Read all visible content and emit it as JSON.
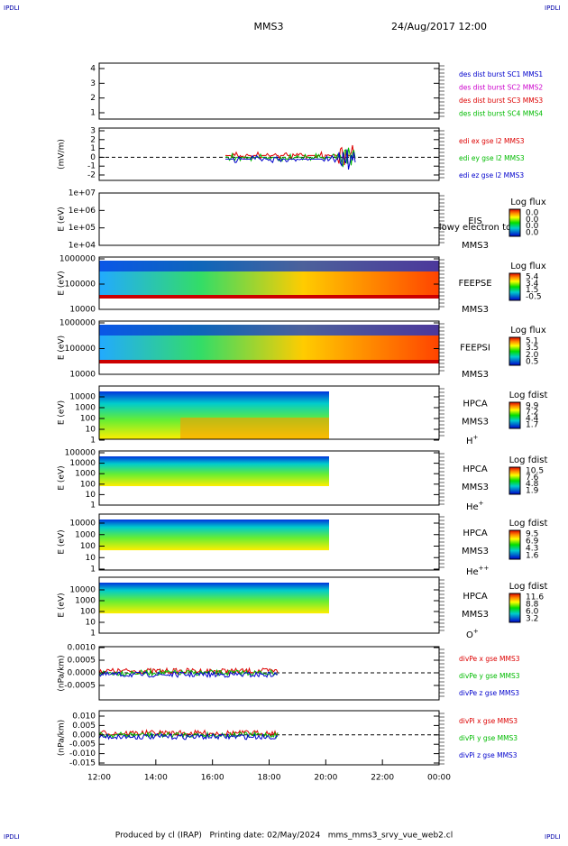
{
  "header": {
    "left_logo": "IPDLI",
    "right_logo": "IPDLI",
    "mission": "MMS3",
    "date": "24/Aug/2017 12:00"
  },
  "panels": [
    {
      "kind": "line",
      "yticks": [
        "4",
        "3",
        "2",
        "1"
      ],
      "legend": [
        {
          "text": "des dist burst SC1 MMS1",
          "color": "#0000cc"
        },
        {
          "text": "des dist burst SC2 MMS2",
          "color": "#cc00cc"
        },
        {
          "text": "des dist burst SC3 MMS3",
          "color": "#dd0000"
        },
        {
          "text": "des dist burst SC4 MMS4",
          "color": "#00bb00"
        }
      ]
    },
    {
      "kind": "line",
      "ylabel": "(mV/m)",
      "dashed_zero": true,
      "yticks": [
        "3",
        "2",
        "1",
        "0",
        "-1",
        "-2"
      ],
      "legend": [
        {
          "text": "edi ex gse l2 MMS3",
          "color": "#dd0000"
        },
        {
          "text": "edi ey gse l2 MMS3",
          "color": "#00bb00"
        },
        {
          "text": "edi ez gse l2 MMS3",
          "color": "#0000cc"
        }
      ]
    },
    {
      "kind": "spectrogram",
      "ylabel": "E (eV)",
      "yticks": [
        "1e+07",
        "1e+06",
        "1e+05",
        "1e+04"
      ],
      "instrument": "EIS",
      "note": "lowy electron to",
      "spacecraft": "MMS3",
      "colorbar": {
        "title": "Log flux",
        "ticks": [
          "0.0",
          "0.0",
          "0.0",
          "0.0"
        ]
      }
    },
    {
      "kind": "spectrogram",
      "ylabel": "E (eV)",
      "yticks": [
        "1000000",
        "100000",
        "10000"
      ],
      "instrument": "FEEPSE",
      "spacecraft": "MMS3",
      "colorbar": {
        "title": "Log flux",
        "ticks": [
          "5.4",
          "3.4",
          "1.5",
          "-0.5"
        ]
      }
    },
    {
      "kind": "spectrogram",
      "ylabel": "E (eV)",
      "yticks": [
        "1000000",
        "100000",
        "10000"
      ],
      "instrument": "FEEPSI",
      "spacecraft": "MMS3",
      "colorbar": {
        "title": "Log flux",
        "ticks": [
          "5.1",
          "3.5",
          "2.0",
          "0.5"
        ]
      }
    },
    {
      "kind": "spectrogram",
      "ylabel": "E (eV)",
      "yticks": [
        "10000",
        "1000",
        "100",
        "10",
        "1"
      ],
      "instrument": "HPCA",
      "spacecraft": "MMS3",
      "species": {
        "base": "H",
        "sup": "+"
      },
      "colorbar": {
        "title": "Log fdist",
        "ticks": [
          "9.9",
          "7.2",
          "4.4",
          "1.7"
        ]
      }
    },
    {
      "kind": "spectrogram",
      "ylabel": "E (eV)",
      "yticks": [
        "100000",
        "10000",
        "1000",
        "100",
        "10",
        "1"
      ],
      "instrument": "HPCA",
      "spacecraft": "MMS3",
      "species": {
        "base": "He",
        "sup": "+"
      },
      "colorbar": {
        "title": "Log fdist",
        "ticks": [
          "10.5",
          "7.6",
          "4.8",
          "1.9"
        ]
      }
    },
    {
      "kind": "spectrogram",
      "ylabel": "E (eV)",
      "yticks": [
        "10000",
        "1000",
        "100",
        "10",
        "1"
      ],
      "instrument": "HPCA",
      "spacecraft": "MMS3",
      "species": {
        "base": "He",
        "sup": "++"
      },
      "colorbar": {
        "title": "Log fdist",
        "ticks": [
          "9.5",
          "6.9",
          "4.3",
          "1.6"
        ]
      }
    },
    {
      "kind": "spectrogram",
      "ylabel": "E (eV)",
      "yticks": [
        "10000",
        "1000",
        "100",
        "10",
        "1"
      ],
      "instrument": "HPCA",
      "spacecraft": "MMS3",
      "species": {
        "base": "O",
        "sup": "+"
      },
      "colorbar": {
        "title": "Log fdist",
        "ticks": [
          "11.6",
          "8.8",
          "6.0",
          "3.2"
        ]
      }
    },
    {
      "kind": "line",
      "ylabel": "(nPa/km)",
      "dashed_zero": true,
      "yticks": [
        "0.0010",
        "0.0005",
        "0.0000",
        "-0.0005"
      ],
      "legend": [
        {
          "text": "divPe x gse MMS3",
          "color": "#dd0000"
        },
        {
          "text": "divPe y gse MMS3",
          "color": "#00bb00"
        },
        {
          "text": "divPe z gse MMS3",
          "color": "#0000cc"
        }
      ]
    },
    {
      "kind": "line",
      "ylabel": "(nPa/km)",
      "dashed_zero": true,
      "yticks": [
        "0.010",
        "0.005",
        "0.000",
        "-0.005",
        "-0.010",
        "-0.015"
      ],
      "legend": [
        {
          "text": "divPi x gse MMS3",
          "color": "#dd0000"
        },
        {
          "text": "divPi y gse MMS3",
          "color": "#00bb00"
        },
        {
          "text": "divPi z gse MMS3",
          "color": "#0000cc"
        }
      ]
    }
  ],
  "xticks": [
    "12:00",
    "14:00",
    "16:00",
    "18:00",
    "20:00",
    "22:00",
    "00:00"
  ],
  "footer": {
    "left_logo": "IPDLI",
    "right_logo": "IPDLI",
    "text": "Produced by cl (IRAP)   Printing date: 02/May/2024   mms_mms3_srvy_vue_web2.cl"
  }
}
